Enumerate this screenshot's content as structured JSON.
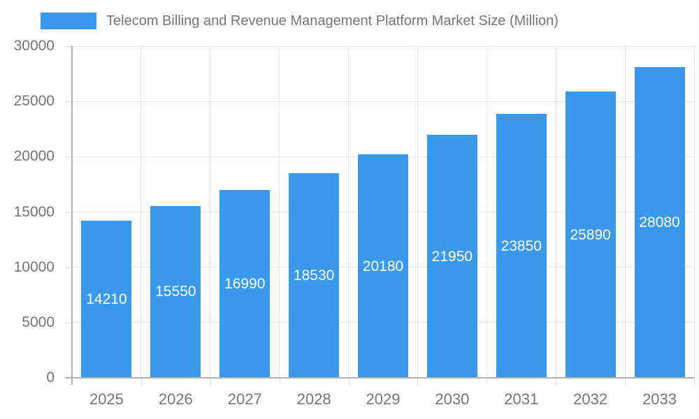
{
  "legend": {
    "label": "Telecom Billing and Revenue Management Platform Market Size (Million)"
  },
  "chart_data": {
    "type": "bar",
    "title": "Telecom Billing and Revenue Management Platform Market Size (Million)",
    "categories": [
      "2025",
      "2026",
      "2027",
      "2028",
      "2029",
      "2030",
      "2031",
      "2032",
      "2033"
    ],
    "values": [
      14210,
      15550,
      16990,
      18530,
      20180,
      21950,
      23850,
      25890,
      28080
    ],
    "xlabel": "",
    "ylabel": "",
    "ylim": [
      0,
      30000
    ],
    "yticks": [
      0,
      5000,
      10000,
      15000,
      20000,
      25000,
      30000
    ],
    "grid": true,
    "legend_position": "top-left",
    "value_labels": "inside-center"
  },
  "colors": {
    "bar": "#3b99ec",
    "grid": "#e5e5e5",
    "axis": "#b0b0b0",
    "tick": "#dcdcdc",
    "text": "#757575",
    "value_text": "#ffffff",
    "background": "#ffffff"
  }
}
